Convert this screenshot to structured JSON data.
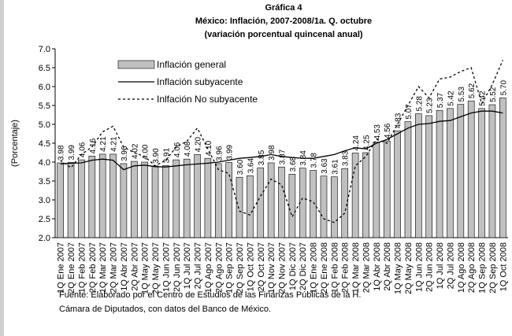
{
  "chart_data": {
    "type": "bar",
    "title": "Gráfica 4",
    "subtitle": "México: Inflación, 2007-2008/1a. Q. octubre",
    "subtitle2": "(variación porcentual quincenal anual)",
    "y_label": "(Porcentaje)",
    "categories": [
      "1Q Ene 2007",
      "2Q Ene 2007",
      "1Q Feb 2007",
      "2Q Feb 2007",
      "1Q Mar 2007",
      "2Q Mar 2007",
      "1Q Abr 2007",
      "2Q Abr 2007",
      "1Q May 2007",
      "2Q May 2007",
      "1Q Jun 2007",
      "2Q Jun 2007",
      "1Q Jul 2007",
      "2Q Jul 2007",
      "1Q Ago 2007",
      "2Q Ago 2007",
      "1Q Sep 2007",
      "2Q Sep 2007",
      "1Q Oct 2007",
      "2Q Oct 2007",
      "1Q Nov 2007",
      "2Q Nov 2007",
      "1Q Dic 2007",
      "2Q Dic 2007",
      "1Q Ene 2008",
      "2Q Ene 2008",
      "1Q Feb 2008",
      "2Q Feb 2008",
      "1Q Mar 2008",
      "2Q Mar 2008",
      "1Q Abr 2008",
      "2Q Abr 2008",
      "1Q May 2008",
      "2Q May 2008",
      "1Q Jun 2008",
      "2Q Jun 2008",
      "1Q Jul 2008",
      "2Q Jul 2008",
      "1Q Ago 2008",
      "2Q Ago 2008",
      "1Q Sep 2008",
      "2Q Sep 2008",
      "1Q Oct 2008"
    ],
    "series": [
      {
        "name": "Inflación general",
        "type": "bar",
        "color": "#c0c0c0",
        "values": [
          3.98,
          3.99,
          4.06,
          4.16,
          4.21,
          4.21,
          3.96,
          4.02,
          4.0,
          3.9,
          3.91,
          4.06,
          4.08,
          4.2,
          4.1,
          3.96,
          3.99,
          3.6,
          3.64,
          3.85,
          3.98,
          3.87,
          3.68,
          3.84,
          3.78,
          3.63,
          3.61,
          3.83,
          4.24,
          4.25,
          4.53,
          4.56,
          4.83,
          5.07,
          5.28,
          5.23,
          5.37,
          5.42,
          5.53,
          5.62,
          5.42,
          5.52,
          5.7
        ],
        "value_labels": [
          "3.98",
          "3.99",
          "4.06",
          "4.16",
          "4.21",
          "4.21",
          "3.96",
          "4.02",
          "4.00",
          "3.90",
          "3.91",
          "4.06",
          "4.08",
          "4.20",
          "4.10",
          "3.96",
          "3.99",
          "3.60",
          "3.64",
          "3.85",
          "3.98",
          "3.87",
          "3.68",
          "3.84",
          "3.78",
          "3.63",
          "3.61",
          "3.83",
          "4.24",
          "4.25",
          "4.53",
          "4.56",
          "4.83",
          "5.07",
          "5.28",
          "5.23",
          "5.37",
          "5.42",
          "5.53",
          "5.62",
          "5.42",
          "5.52",
          "5.70"
        ]
      },
      {
        "name": "Inflación subyacente",
        "type": "line",
        "color": "#000000",
        "values": [
          3.95,
          3.97,
          3.98,
          4.05,
          4.08,
          4.05,
          3.8,
          3.9,
          3.92,
          3.88,
          3.87,
          3.9,
          3.93,
          3.95,
          3.97,
          4.0,
          4.05,
          4.1,
          4.12,
          4.15,
          4.2,
          4.15,
          4.12,
          4.1,
          4.1,
          4.15,
          4.2,
          4.3,
          4.38,
          4.35,
          4.5,
          4.6,
          4.75,
          4.9,
          5.0,
          5.02,
          5.08,
          5.1,
          5.2,
          5.3,
          5.35,
          5.35,
          5.3
        ]
      },
      {
        "name": "Inlfación No subyacente",
        "type": "line",
        "dashed": true,
        "color": "#000000",
        "values": [
          4.05,
          3.85,
          4.2,
          4.4,
          4.8,
          4.95,
          4.4,
          4.25,
          4.15,
          3.9,
          4.05,
          4.4,
          4.55,
          4.9,
          4.35,
          3.8,
          3.7,
          2.7,
          2.6,
          3.1,
          3.55,
          3.4,
          2.55,
          3.05,
          2.95,
          2.5,
          2.4,
          2.65,
          3.9,
          4.15,
          4.6,
          4.5,
          5.0,
          5.5,
          6.0,
          5.7,
          6.2,
          6.25,
          6.4,
          6.5,
          5.55,
          6.05,
          6.7
        ]
      }
    ],
    "ylim": [
      2.0,
      7.0
    ],
    "yticks": [
      {
        "value": 2,
        "label": "2.0"
      },
      {
        "value": 2.5,
        "label": "2.5"
      },
      {
        "value": 3,
        "label": "3.0"
      },
      {
        "value": 3.5,
        "label": "3.5"
      },
      {
        "value": 4,
        "label": "4.0"
      },
      {
        "value": 4.5,
        "label": "4.5"
      },
      {
        "value": 5,
        "label": "5.0"
      },
      {
        "value": 5.5,
        "label": "5.5"
      },
      {
        "value": 6,
        "label": "6.0"
      },
      {
        "value": 6.5,
        "label": "6.5"
      },
      {
        "value": 7,
        "label": "7.0"
      }
    ],
    "legend": "upper left",
    "note": [
      "Fuente: Elaborado por el Centro de Estudios de las Finanzas Públicas de la H.",
      "Cámara de Diputados, con  datos del Banco de México."
    ]
  }
}
